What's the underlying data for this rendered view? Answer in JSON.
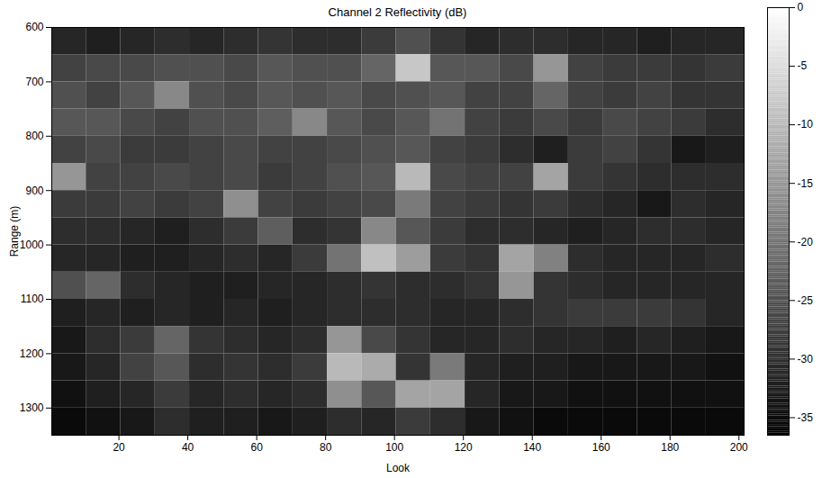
{
  "chart_data": {
    "type": "heatmap",
    "title": "Channel 2 Reflectivity (dB)",
    "x_label": "Look",
    "y_label": "Range (m)",
    "xlim": [
      0.5,
      201.5
    ],
    "ylim": [
      600,
      1350
    ],
    "xticks": [
      20,
      40,
      60,
      80,
      100,
      120,
      140,
      160,
      180,
      200
    ],
    "yticks": [
      600,
      700,
      800,
      900,
      1000,
      1100,
      1200,
      1300
    ],
    "x_edges": [
      0.5,
      10.5,
      20.5,
      30.5,
      40.5,
      50.5,
      60.5,
      70.5,
      80.5,
      90.5,
      100.5,
      110.5,
      120.5,
      130.5,
      140.5,
      150.5,
      160.5,
      170.5,
      180.5,
      190.5,
      201.5
    ],
    "y_edges": [
      600,
      650,
      700,
      750,
      800,
      850,
      900,
      950,
      1000,
      1050,
      1100,
      1150,
      1200,
      1250,
      1300,
      1350
    ],
    "cells": [
      [
        -31,
        -32,
        -31,
        -30,
        -31,
        -30,
        -29,
        -30,
        -30,
        -28,
        -25,
        -29,
        -31,
        -30,
        -30,
        -31,
        -31,
        -32,
        -31,
        -31
      ],
      [
        -27,
        -26,
        -26,
        -25,
        -25,
        -26,
        -24,
        -25,
        -25,
        -22,
        -8,
        -24,
        -24,
        -26,
        -15,
        -27,
        -28,
        -28,
        -29,
        -28
      ],
      [
        -25,
        -27,
        -24,
        -17,
        -25,
        -26,
        -24,
        -25,
        -24,
        -26,
        -25,
        -24,
        -27,
        -27,
        -22,
        -27,
        -28,
        -27,
        -29,
        -29
      ],
      [
        -24,
        -24,
        -26,
        -27,
        -25,
        -25,
        -23,
        -17,
        -24,
        -26,
        -24,
        -20,
        -27,
        -28,
        -26,
        -28,
        -26,
        -27,
        -28,
        -30
      ],
      [
        -27,
        -26,
        -28,
        -28,
        -27,
        -26,
        -27,
        -27,
        -26,
        -25,
        -24,
        -27,
        -28,
        -30,
        -32,
        -28,
        -27,
        -29,
        -33,
        -32
      ],
      [
        -15,
        -27,
        -27,
        -26,
        -27,
        -26,
        -28,
        -27,
        -25,
        -24,
        -10,
        -26,
        -27,
        -27,
        -13,
        -28,
        -29,
        -30,
        -30,
        -30
      ],
      [
        -28,
        -28,
        -27,
        -28,
        -27,
        -16,
        -27,
        -28,
        -27,
        -26,
        -19,
        -27,
        -28,
        -29,
        -28,
        -30,
        -31,
        -33,
        -30,
        -31
      ],
      [
        -30,
        -30,
        -31,
        -32,
        -30,
        -28,
        -23,
        -30,
        -29,
        -17,
        -24,
        -28,
        -30,
        -30,
        -31,
        -32,
        -31,
        -30,
        -30,
        -31
      ],
      [
        -31,
        -31,
        -32,
        -32,
        -31,
        -30,
        -31,
        -28,
        -20,
        -9,
        -14,
        -28,
        -29,
        -13,
        -18,
        -30,
        -31,
        -31,
        -31,
        -30
      ],
      [
        -25,
        -22,
        -30,
        -31,
        -32,
        -32,
        -31,
        -31,
        -30,
        -29,
        -30,
        -30,
        -29,
        -15,
        -29,
        -30,
        -31,
        -31,
        -31,
        -31
      ],
      [
        -32,
        -31,
        -32,
        -31,
        -32,
        -31,
        -32,
        -31,
        -30,
        -30,
        -30,
        -31,
        -31,
        -30,
        -29,
        -28,
        -28,
        -28,
        -29,
        -31
      ],
      [
        -33,
        -30,
        -28,
        -22,
        -29,
        -30,
        -31,
        -30,
        -15,
        -26,
        -29,
        -31,
        -31,
        -30,
        -31,
        -31,
        -32,
        -31,
        -32,
        -33
      ],
      [
        -33,
        -31,
        -27,
        -24,
        -30,
        -29,
        -30,
        -28,
        -10,
        -12,
        -29,
        -19,
        -31,
        -32,
        -32,
        -33,
        -33,
        -33,
        -33,
        -34
      ],
      [
        -34,
        -32,
        -31,
        -28,
        -31,
        -30,
        -31,
        -30,
        -16,
        -24,
        -13,
        -13,
        -31,
        -33,
        -33,
        -34,
        -34,
        -34,
        -34,
        -34
      ],
      [
        -35,
        -34,
        -33,
        -30,
        -32,
        -32,
        -33,
        -32,
        -30,
        -31,
        -28,
        -30,
        -33,
        -34,
        -35,
        -35,
        -35,
        -35,
        -35,
        -35
      ]
    ],
    "colorbar": {
      "range": [
        -36.5,
        0
      ],
      "ticks": [
        0,
        -5,
        -10,
        -15,
        -20,
        -25,
        -30,
        -35
      ]
    }
  }
}
